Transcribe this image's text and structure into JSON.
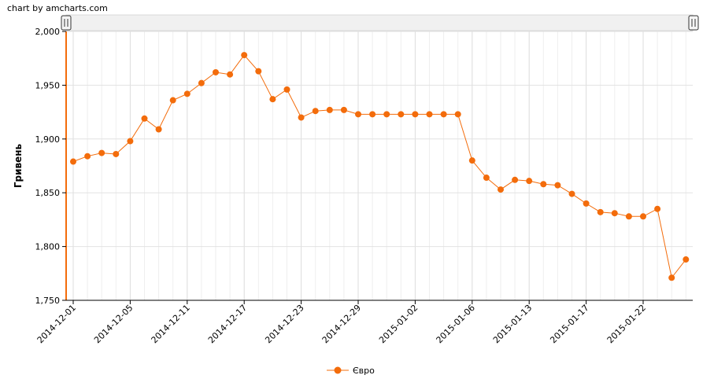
{
  "credit": "chart by amcharts.com",
  "chart_data": {
    "type": "line",
    "ylabel": "Гривень",
    "xlabel": "",
    "ylim": [
      1750,
      2000
    ],
    "yticks": [
      1750,
      1800,
      1850,
      1900,
      1950,
      2000
    ],
    "ytick_labels": [
      "1,750",
      "1,800",
      "1,850",
      "1,900",
      "1,950",
      "2,000"
    ],
    "xtick_labels": [
      "2014-12-01",
      "2014-12-05",
      "2014-12-11",
      "2014-12-17",
      "2014-12-23",
      "2014-12-29",
      "2015-01-02",
      "2015-01-06",
      "2015-01-13",
      "2015-01-17",
      "2015-01-22"
    ],
    "xtick_indices": [
      0,
      4,
      8,
      12,
      16,
      20,
      24,
      28,
      32,
      36,
      40
    ],
    "grid": true,
    "legend_position": "bottom",
    "series": [
      {
        "name": "Євро",
        "color": "#f36c0b",
        "values": [
          1879,
          1884,
          1887,
          1886,
          1898,
          1919,
          1909,
          1936,
          1942,
          1952,
          1962,
          1960,
          1978,
          1963,
          1937,
          1946,
          1920,
          1926,
          1927,
          1927,
          1923,
          1923,
          1923,
          1923,
          1923,
          1923,
          1923,
          1923,
          1880,
          1864,
          1853,
          1862,
          1861,
          1858,
          1857,
          1849,
          1840,
          1832,
          1831,
          1828,
          1828,
          1835,
          1771,
          1788
        ]
      }
    ]
  }
}
